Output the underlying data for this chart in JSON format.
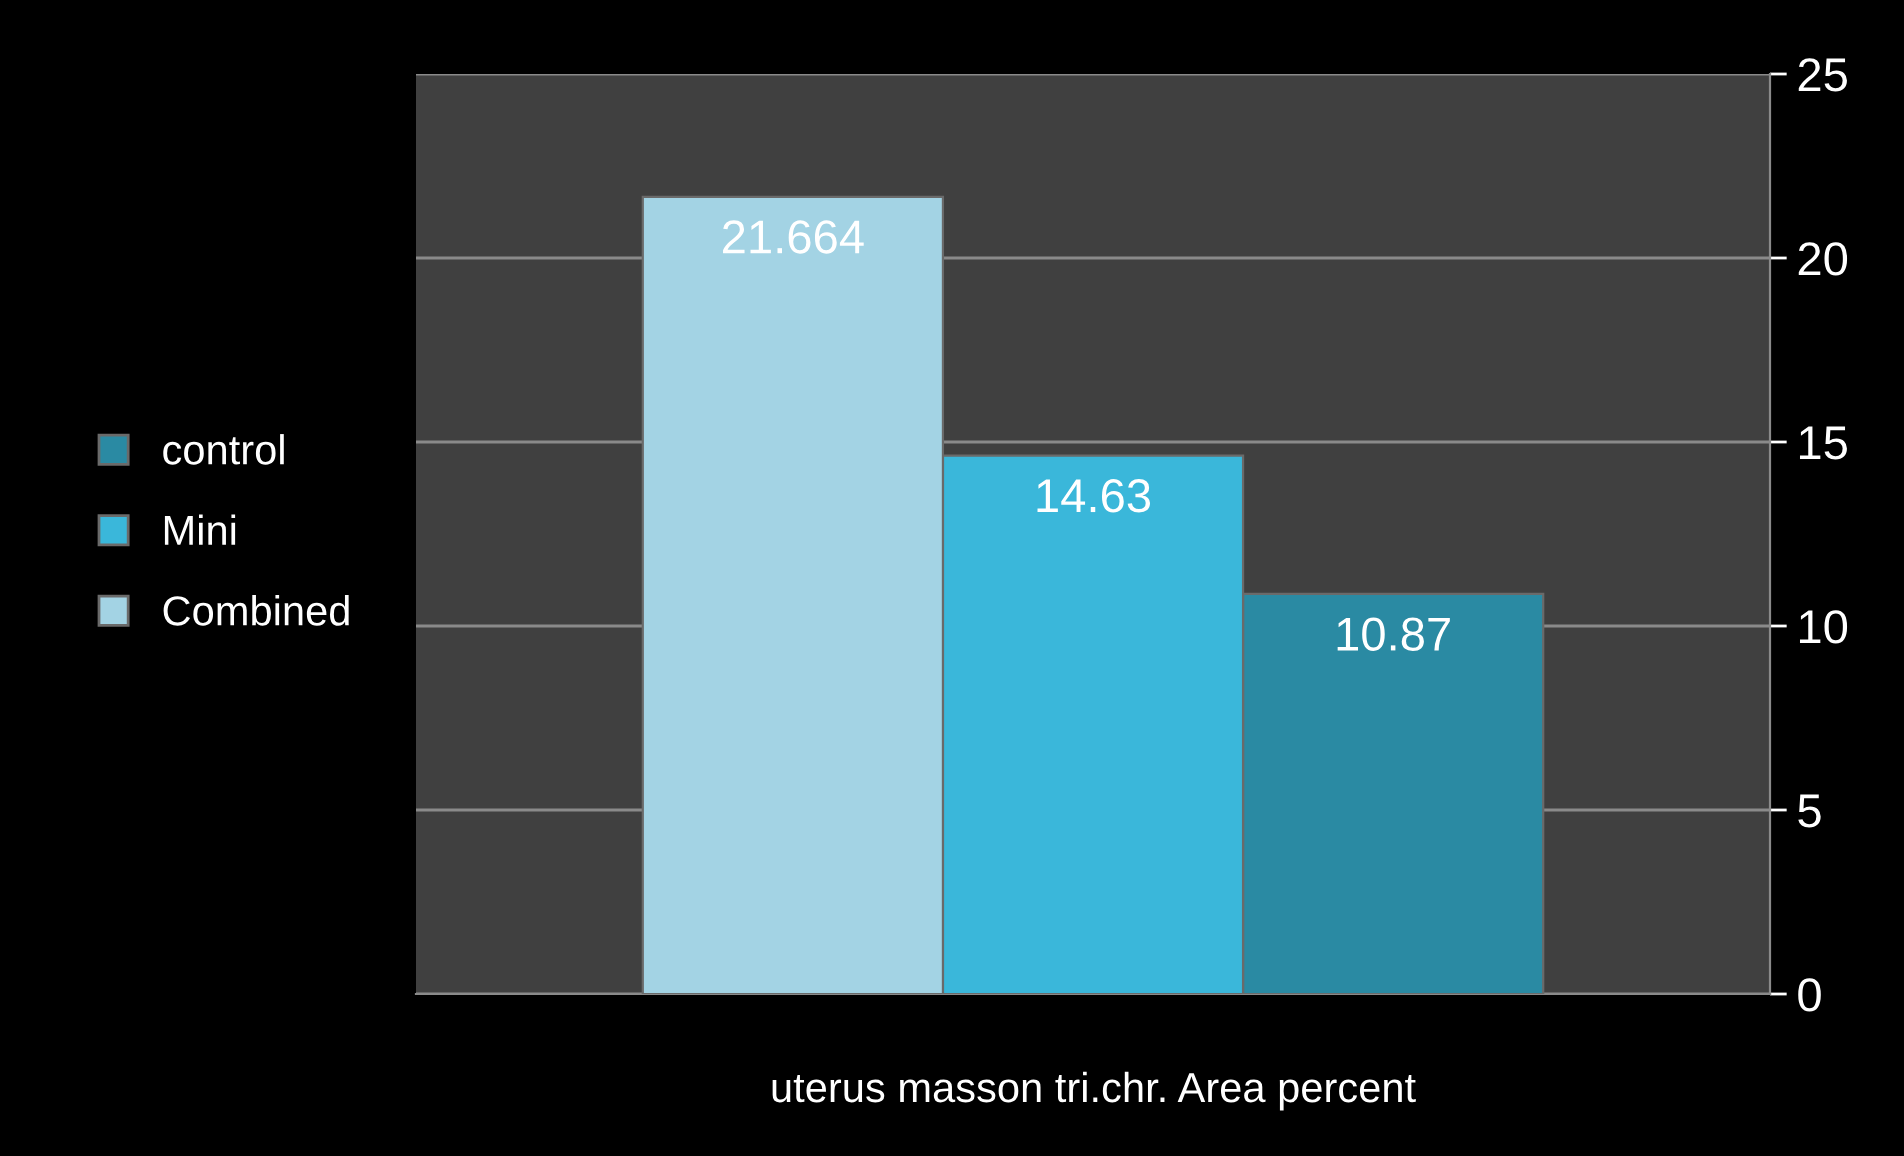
{
  "chart_data": {
    "type": "bar",
    "categories": [
      "uterus masson tri.chr. Area percent"
    ],
    "series": [
      {
        "name": "control",
        "color": "#2a8aa3",
        "values": [
          10.87
        ]
      },
      {
        "name": "Mini",
        "color": "#3ab7da",
        "values": [
          14.63
        ]
      },
      {
        "name": "Combined",
        "color": "#a3d3e4",
        "values": [
          21.664
        ]
      }
    ],
    "ylim": [
      0,
      25
    ],
    "yticks": [
      0,
      5,
      10,
      15,
      20,
      25
    ],
    "grid": "y",
    "legend": "left",
    "data_labels": true
  }
}
